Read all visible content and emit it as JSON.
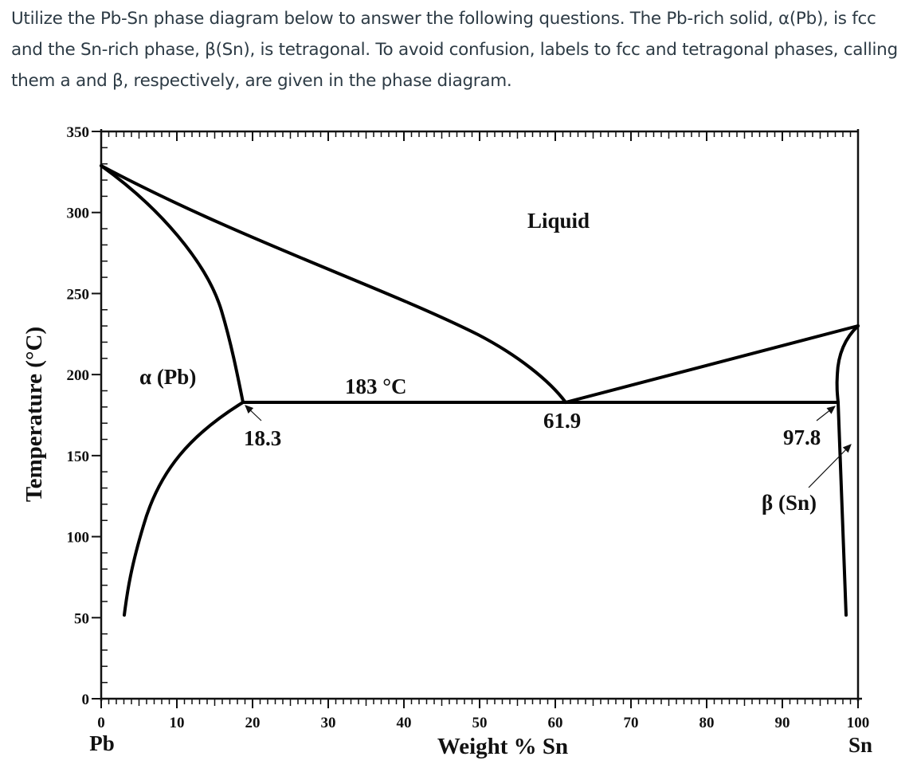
{
  "question": {
    "text": "Utilize the Pb-Sn phase diagram below to answer the following questions. The Pb-rich solid, α(Pb), is fcc and the Sn-rich phase, β(Sn), is tetragonal. To avoid confusion, labels to fcc and tetragonal phases, calling them a and β, respectively, are given in the phase diagram."
  },
  "diagram": {
    "xlabel": "Weight % Sn",
    "ylabel": "Temperature (°C)",
    "left_component": "Pb",
    "right_component": "Sn",
    "x_ticks": [
      "0",
      "10",
      "20",
      "30",
      "40",
      "50",
      "60",
      "70",
      "80",
      "90",
      "100"
    ],
    "y_ticks": [
      "0",
      "50",
      "100",
      "150",
      "200",
      "250",
      "300",
      "350"
    ],
    "region_labels": {
      "liquid": "Liquid",
      "alpha": "α (Pb)",
      "beta": "β (Sn)"
    },
    "annotations": {
      "eutectic_temp": "183 °C",
      "alpha_max_solubility": "18.3",
      "eutectic_composition": "61.9",
      "beta_max_solubility": "97.8"
    }
  },
  "chart_data": {
    "type": "line",
    "title": "Pb-Sn phase diagram",
    "xlabel": "Weight % Sn",
    "ylabel": "Temperature (°C)",
    "xlim": [
      0,
      100
    ],
    "ylim": [
      0,
      350
    ],
    "x_ticks": [
      0,
      10,
      20,
      30,
      40,
      50,
      60,
      70,
      80,
      90,
      100
    ],
    "y_ticks": [
      0,
      50,
      100,
      150,
      200,
      250,
      300,
      350
    ],
    "grid": false,
    "series": [
      {
        "name": "Liquidus (Pb side)",
        "x": [
          0,
          10,
          20,
          30,
          40,
          50,
          61.9
        ],
        "y": [
          327,
          302,
          278,
          256,
          234,
          212,
          183
        ]
      },
      {
        "name": "Liquidus (Sn side)",
        "x": [
          61.9,
          70,
          80,
          90,
          100
        ],
        "y": [
          183,
          195,
          207,
          219,
          232
        ]
      },
      {
        "name": "Solidus α",
        "x": [
          0,
          5,
          10,
          15,
          18.3
        ],
        "y": [
          327,
          299,
          266,
          225,
          183
        ]
      },
      {
        "name": "Solvus α",
        "x": [
          18.3,
          14,
          10,
          6,
          4,
          2.6
        ],
        "y": [
          183,
          168,
          145,
          112,
          85,
          50
        ]
      },
      {
        "name": "Eutectic isotherm",
        "x": [
          18.3,
          97.8
        ],
        "y": [
          183,
          183
        ]
      },
      {
        "name": "Solidus β",
        "x": [
          97.8,
          97.7,
          98.3,
          100
        ],
        "y": [
          183,
          200,
          220,
          232
        ]
      },
      {
        "name": "Solvus β",
        "x": [
          97.8,
          98.2,
          98.6
        ],
        "y": [
          183,
          120,
          50
        ]
      }
    ],
    "labels": [
      {
        "text": "Liquid",
        "x": 61,
        "y": 295
      },
      {
        "text": "α (Pb)",
        "x": 9,
        "y": 200
      },
      {
        "text": "β (Sn)",
        "x": 90,
        "y": 120
      },
      {
        "text": "183 °C",
        "x": 36,
        "y": 190
      },
      {
        "text": "18.3",
        "x": 22,
        "y": 160
      },
      {
        "text": "61.9",
        "x": 60,
        "y": 170
      },
      {
        "text": "97.8",
        "x": 93,
        "y": 160
      }
    ]
  }
}
